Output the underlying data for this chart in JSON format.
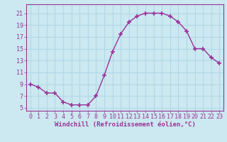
{
  "x": [
    0,
    1,
    2,
    3,
    4,
    5,
    6,
    7,
    8,
    9,
    10,
    11,
    12,
    13,
    14,
    15,
    16,
    17,
    18,
    19,
    20,
    21,
    22,
    23
  ],
  "y": [
    9,
    8.5,
    7.5,
    7.5,
    6.0,
    5.5,
    5.5,
    5.5,
    7.0,
    10.5,
    14.5,
    17.5,
    19.5,
    20.5,
    21.0,
    21.0,
    21.0,
    20.5,
    19.5,
    18.0,
    15.0,
    15.0,
    13.5,
    12.5
  ],
  "line_color": "#993399",
  "marker": "+",
  "marker_size": 4,
  "xlim": [
    -0.5,
    23.5
  ],
  "ylim": [
    4.5,
    22.5
  ],
  "yticks": [
    5,
    7,
    9,
    11,
    13,
    15,
    17,
    19,
    21
  ],
  "xticks": [
    0,
    1,
    2,
    3,
    4,
    5,
    6,
    7,
    8,
    9,
    10,
    11,
    12,
    13,
    14,
    15,
    16,
    17,
    18,
    19,
    20,
    21,
    22,
    23
  ],
  "xlabel": "Windchill (Refroidissement éolien,°C)",
  "background_color": "#cce8f0",
  "grid_color": "#b0d8e8",
  "xlabel_color": "#993399",
  "tick_label_color": "#993399",
  "tick_fontsize": 6,
  "xlabel_fontsize": 6.5,
  "linewidth": 1.0
}
